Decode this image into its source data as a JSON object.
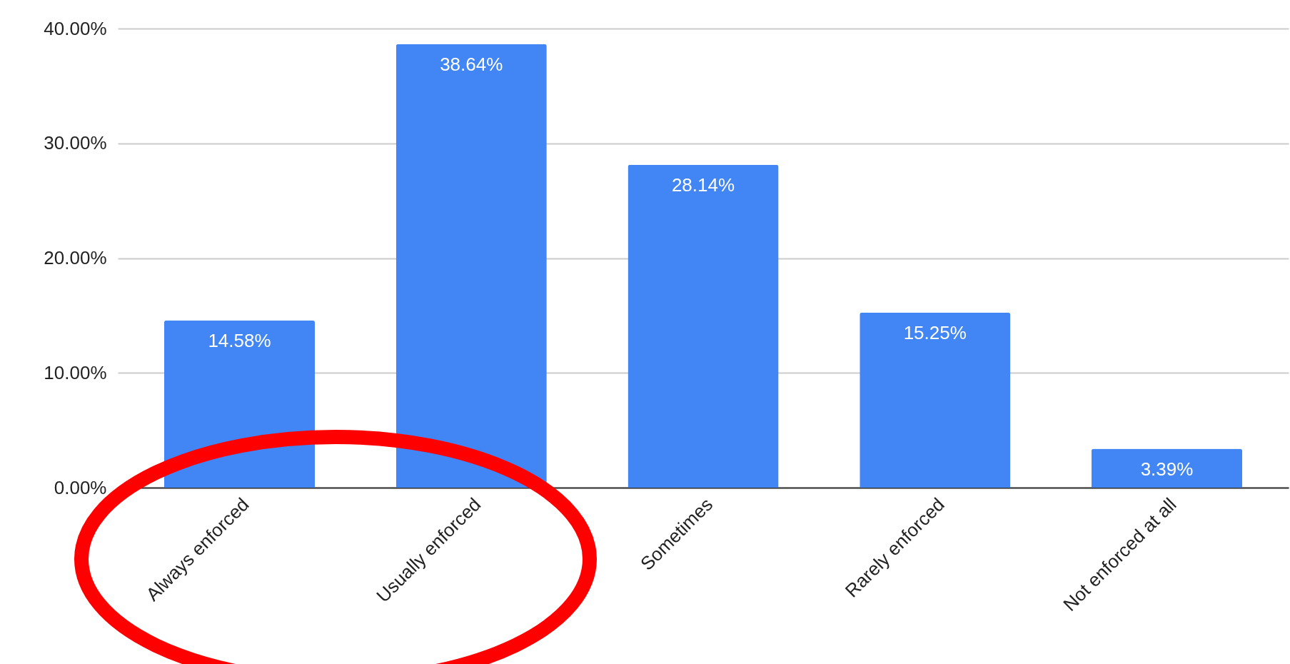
{
  "chart_data": {
    "type": "bar",
    "categories": [
      "Always enforced",
      "Usually enforced",
      "Sometimes",
      "Rarely enforced",
      "Not enforced at all"
    ],
    "values": [
      14.58,
      38.64,
      28.14,
      15.25,
      3.39
    ],
    "value_labels": [
      "14.58%",
      "38.64%",
      "28.14%",
      "15.25%",
      "3.39%"
    ],
    "color": "#4285f4",
    "ylim": [
      0,
      40
    ],
    "yticks": [
      {
        "value": 0,
        "label": "0.00%"
      },
      {
        "value": 10,
        "label": "10.00%"
      },
      {
        "value": 20,
        "label": "20.00%"
      },
      {
        "value": 30,
        "label": "30.00%"
      },
      {
        "value": 40,
        "label": "40.00%"
      }
    ],
    "grid": "y"
  }
}
